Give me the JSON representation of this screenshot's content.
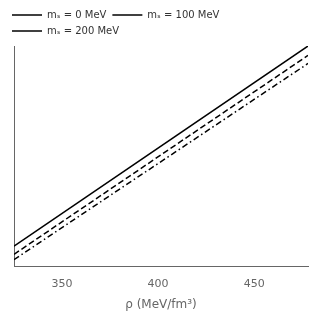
{
  "chart_data": {
    "type": "line",
    "xlabel": "ρ (MeV/fm³)",
    "x": [
      325,
      478
    ],
    "series": [
      {
        "name": "mₛ = 0 MeV",
        "color": "#000000",
        "line_style": "solid",
        "values": [
          -0.025,
          0.72
        ]
      },
      {
        "name": "mₛ = 100 MeV",
        "color": "#000000",
        "line_style": "dashed",
        "values": [
          -0.055,
          0.685
        ]
      },
      {
        "name": "mₛ = 200 MeV",
        "color": "#000000",
        "line_style": "dashdot",
        "values": [
          -0.075,
          0.655
        ]
      }
    ],
    "xlim": [
      325,
      478
    ],
    "xticks": [
      350,
      400,
      450
    ],
    "ylim": [
      -0.1,
      0.72
    ],
    "tick_labels": "x",
    "grid": false,
    "legend": "upper left"
  }
}
